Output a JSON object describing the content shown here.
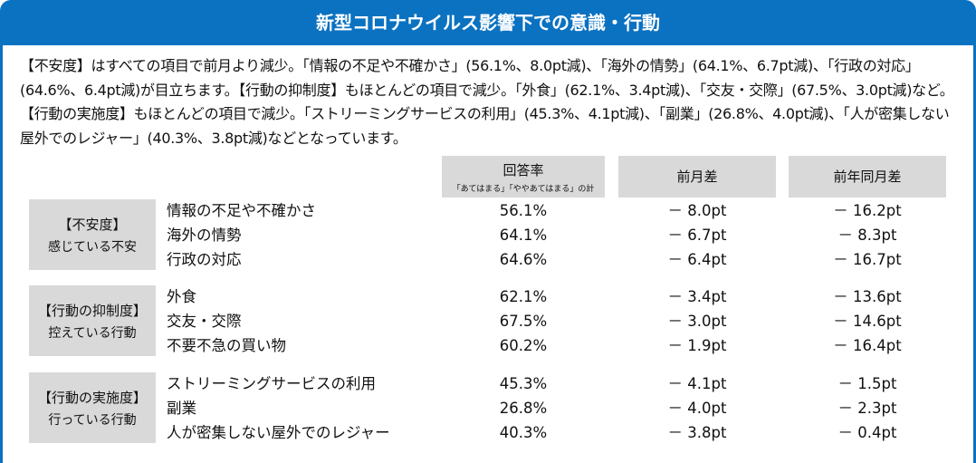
{
  "title": "新型コロナウイルス影響下での意識・行動",
  "intro": "【不安度】はすべての項目で前月より減少。「情報の不足や不確かさ」(56.1%、8.0pt減)、「海外の情勢」(64.1%、6.7pt減)、「行政の対応」(64.6%、6.4pt減)が目立ちます。【行動の抑制度】もほとんどの項目で減少。「外食」(62.1%、3.4pt減)、「交友・交際」(67.5%、3.0pt減)など。【行動の実施度】もほとんどの項目で減少。「ストリーミングサービスの利用」(45.3%、4.1pt減)、「副業」(26.8%、4.0pt減)、「人が密集しない屋外でのレジャー」(40.3%、3.8pt減)などとなっています。",
  "columns": {
    "rate": "回答率",
    "rate_note": "「あてはまる」「ややあてはまる」の計",
    "mom": "前月差",
    "yoy": "前年同月差"
  },
  "groups": [
    {
      "title": "【不安度】",
      "subtitle": "感じている不安",
      "rows": [
        {
          "item": "情報の不足や不確かさ",
          "rate": "56.1%",
          "mom": "－ 8.0pt",
          "yoy": "－ 16.2pt"
        },
        {
          "item": "海外の情勢",
          "rate": "64.1%",
          "mom": "－ 6.7pt",
          "yoy": "－ 8.3pt"
        },
        {
          "item": "行政の対応",
          "rate": "64.6%",
          "mom": "－ 6.4pt",
          "yoy": "－ 16.7pt"
        }
      ]
    },
    {
      "title": "【行動の抑制度】",
      "subtitle": "控えている行動",
      "rows": [
        {
          "item": "外食",
          "rate": "62.1%",
          "mom": "－ 3.4pt",
          "yoy": "－ 13.6pt"
        },
        {
          "item": "交友・交際",
          "rate": "67.5%",
          "mom": "－ 3.0pt",
          "yoy": "－ 14.6pt"
        },
        {
          "item": "不要不急の買い物",
          "rate": "60.2%",
          "mom": "－ 1.9pt",
          "yoy": "－ 16.4pt"
        }
      ]
    },
    {
      "title": "【行動の実施度】",
      "subtitle": "行っている行動",
      "rows": [
        {
          "item": "ストリーミングサービスの利用",
          "rate": "45.3%",
          "mom": "－ 4.1pt",
          "yoy": "－ 1.5pt"
        },
        {
          "item": "副業",
          "rate": "26.8%",
          "mom": "－ 4.0pt",
          "yoy": "－ 2.3pt"
        },
        {
          "item": "人が密集しない屋外でのレジャー",
          "rate": "40.3%",
          "mom": "－ 3.8pt",
          "yoy": "－ 0.4pt"
        }
      ]
    }
  ]
}
